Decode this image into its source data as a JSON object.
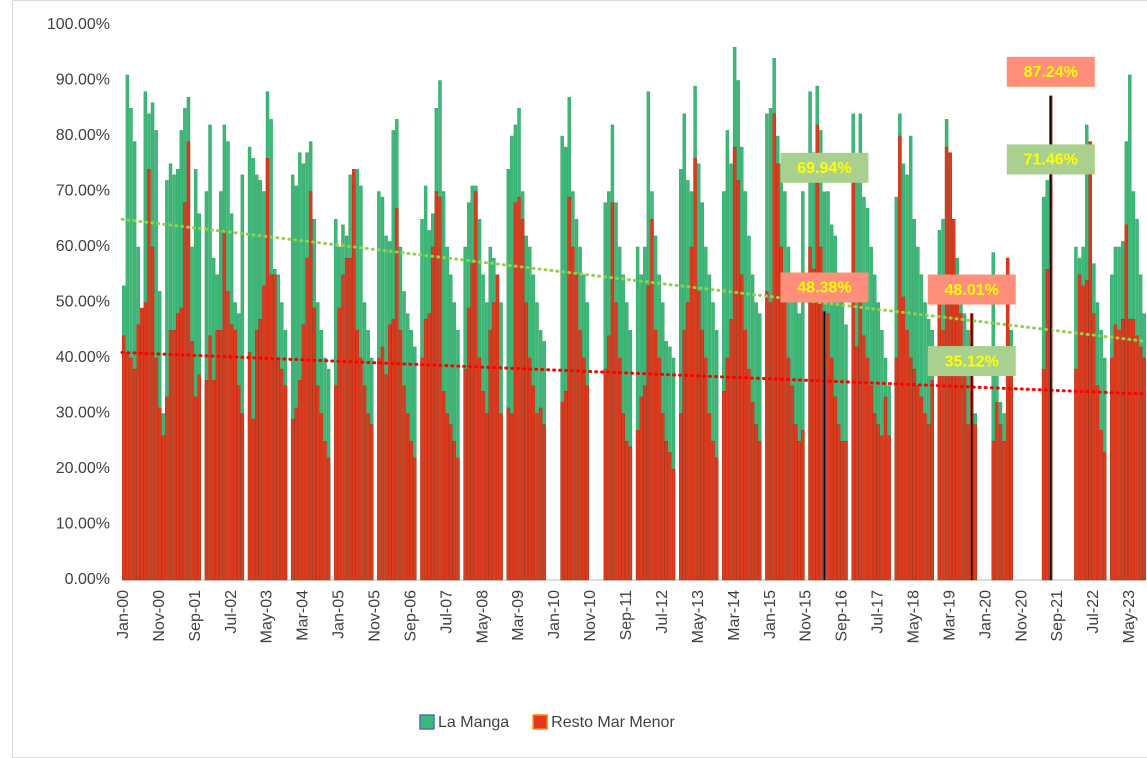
{
  "chart_data": {
    "type": "bar",
    "categories": [
      "Jan-00",
      null,
      null,
      null,
      null,
      null,
      null,
      null,
      null,
      null,
      "Nov-00",
      null,
      null,
      null,
      null,
      null,
      null,
      null,
      null,
      null,
      "Sep-01",
      null,
      null,
      null,
      null,
      null,
      null,
      null,
      null,
      null,
      "Jul-02",
      null,
      null,
      null,
      null,
      null,
      null,
      null,
      null,
      null,
      "May-03",
      null,
      null,
      null,
      null,
      null,
      null,
      null,
      null,
      null,
      "Mar-04",
      null,
      null,
      null,
      null,
      null,
      null,
      null,
      null,
      null,
      "Jan-05",
      null,
      null,
      null,
      null,
      null,
      null,
      null,
      null,
      null,
      "Nov-05",
      null,
      null,
      null,
      null,
      null,
      null,
      null,
      null,
      null,
      "Sep-06",
      null,
      null,
      null,
      null,
      null,
      null,
      null,
      null,
      null,
      "Jul-07",
      null,
      null,
      null,
      null,
      null,
      null,
      null,
      null,
      null,
      "May-08",
      null,
      null,
      null,
      null,
      null,
      null,
      null,
      null,
      null,
      "Mar-09",
      null,
      null,
      null,
      null,
      null,
      null,
      null,
      null,
      null,
      "Jan-10",
      null,
      null,
      null,
      null,
      null,
      null,
      null,
      null,
      null,
      "Nov-10",
      null,
      null,
      null,
      null,
      null,
      null,
      null,
      null,
      null,
      "Sep-11",
      null,
      null,
      null,
      null,
      null,
      null,
      null,
      null,
      null,
      "Jul-12",
      null,
      null,
      null,
      null,
      null,
      null,
      null,
      null,
      null,
      "May-13",
      null,
      null,
      null,
      null,
      null,
      null,
      null,
      null,
      null,
      "Mar-14",
      null,
      null,
      null,
      null,
      null,
      null,
      null,
      null,
      null,
      "Jan-15",
      null,
      null,
      null,
      null,
      null,
      null,
      null,
      null,
      null,
      "Nov-15",
      null,
      null,
      null,
      null,
      null,
      null,
      null,
      null,
      null,
      "Sep-16",
      null,
      null,
      null,
      null,
      null,
      null,
      null,
      null,
      null,
      "Jul-17",
      null,
      null,
      null,
      null,
      null,
      null,
      null,
      null,
      null,
      "May-18",
      null,
      null,
      null,
      null,
      null,
      null,
      null,
      null,
      null,
      "Mar-19",
      null,
      null,
      null,
      null,
      null,
      null,
      null,
      null,
      null,
      "Jan-20",
      null,
      null,
      null,
      null,
      null,
      null,
      null,
      null,
      null,
      "Nov-20",
      null,
      null,
      null,
      null,
      null,
      null,
      null,
      null,
      null,
      "Sep-21",
      null,
      null,
      null,
      null,
      null,
      null,
      null,
      null,
      null,
      "Jul-22",
      null,
      null,
      null,
      null,
      null,
      null,
      null,
      null,
      null,
      "May-23",
      null,
      null,
      null,
      null
    ],
    "series": [
      {
        "name": "La Manga",
        "color": "#3cb878",
        "stroke": "#2a9a5c",
        "label_color": "#a9d08e",
        "trendline": [
          65,
          43
        ],
        "trend_color": "#92d050",
        "values": [
          53,
          91,
          85,
          79,
          60,
          46,
          88,
          84,
          86,
          81,
          52,
          30,
          72,
          75,
          73,
          74,
          81,
          85,
          87,
          60,
          74,
          66,
          null,
          70,
          82,
          58,
          55,
          70,
          82,
          79,
          66,
          50,
          48,
          73,
          null,
          78,
          76,
          73,
          72,
          70,
          88,
          83,
          56,
          55,
          50,
          45,
          null,
          73,
          71,
          77,
          75,
          77,
          79,
          65,
          50,
          45,
          40,
          38,
          null,
          65,
          60,
          64,
          62,
          73,
          72,
          74,
          71,
          50,
          45,
          40,
          null,
          70,
          69,
          62,
          61,
          81,
          83,
          60,
          52,
          48,
          45,
          42,
          null,
          65,
          71,
          63,
          66,
          85,
          90,
          70,
          60,
          55,
          50,
          45,
          null,
          60,
          68,
          71,
          71,
          65,
          55,
          50,
          60,
          58,
          55,
          50,
          null,
          74,
          80,
          82,
          85,
          70,
          62,
          60,
          55,
          50,
          45,
          43,
          null,
          null,
          null,
          null,
          80,
          78,
          87,
          70,
          65,
          60,
          55,
          50,
          null,
          null,
          null,
          null,
          68,
          70,
          82,
          68,
          60,
          55,
          50,
          45,
          null,
          60,
          55,
          60,
          88,
          70,
          62,
          55,
          50,
          43,
          42,
          40,
          null,
          74,
          84,
          72,
          70,
          89,
          75,
          68,
          60,
          55,
          50,
          45,
          null,
          70,
          81,
          75,
          96,
          90,
          78,
          70,
          62,
          55,
          50,
          48,
          null,
          84,
          85,
          94,
          80,
          75,
          70,
          60,
          55,
          50,
          48,
          70,
          null,
          88,
          77,
          89,
          81,
          69.94,
          70,
          64,
          62,
          55,
          50,
          46,
          null,
          84,
          74,
          84,
          69,
          67,
          60,
          55,
          50,
          45,
          40,
          35,
          null,
          69,
          84,
          75,
          73,
          80,
          65,
          60,
          55,
          50,
          47,
          45,
          null,
          63,
          65,
          83,
          74,
          63,
          58,
          55,
          48,
          45,
          35.12,
          30,
          null,
          null,
          null,
          null,
          59,
          40,
          32,
          30,
          58,
          45,
          null,
          null,
          null,
          null,
          null,
          null,
          null,
          null,
          69,
          72,
          71.46,
          null,
          null,
          null,
          null,
          null,
          null,
          60,
          58,
          60,
          82,
          78,
          57,
          50,
          45,
          40,
          null,
          55,
          60,
          60,
          61,
          79,
          91,
          70,
          65,
          55,
          48
        ]
      },
      {
        "name": "Resto Mar Menor",
        "color": "#e03a1e",
        "stroke": "#b02a12",
        "label_color": "#ff8f7a",
        "trendline": [
          41,
          33.5
        ],
        "trend_color": "#ff0000",
        "values": [
          44,
          41,
          40,
          38,
          46,
          49,
          50,
          74,
          60,
          40,
          31,
          26,
          33,
          45,
          45,
          48,
          49,
          68,
          79,
          43,
          33,
          37,
          null,
          36,
          44,
          36,
          45,
          45,
          63,
          52,
          46,
          45,
          35,
          30,
          null,
          41,
          29,
          45,
          47,
          53,
          76,
          55,
          55,
          40,
          38,
          35,
          null,
          29,
          31,
          36,
          46,
          58,
          70,
          49,
          35,
          30,
          25,
          22,
          null,
          35,
          49,
          55,
          58,
          58,
          74,
          45,
          40,
          35,
          30,
          28,
          null,
          40,
          42,
          37,
          46,
          47,
          67,
          45,
          35,
          30,
          25,
          22,
          null,
          40,
          47,
          48,
          60,
          70,
          69,
          34,
          30,
          28,
          25,
          22,
          null,
          38,
          49,
          57,
          70,
          40,
          34,
          30,
          45,
          50,
          55,
          30,
          null,
          31,
          30,
          68,
          69,
          65,
          50,
          40,
          35,
          30,
          31,
          28,
          null,
          null,
          null,
          null,
          32,
          34,
          69,
          60,
          55,
          45,
          40,
          35,
          null,
          null,
          null,
          null,
          38,
          44,
          68,
          50,
          40,
          30,
          25,
          24,
          null,
          27,
          33,
          35,
          53,
          65,
          45,
          40,
          30,
          25,
          23,
          20,
          null,
          30,
          45,
          50,
          60,
          76,
          52,
          45,
          40,
          30,
          25,
          22,
          null,
          34,
          40,
          47,
          78,
          72,
          55,
          45,
          38,
          32,
          28,
          25,
          null,
          52,
          50,
          84,
          75,
          60,
          50,
          40,
          35,
          28,
          25,
          27,
          null,
          60,
          56,
          82,
          60,
          48.38,
          48,
          40,
          33,
          28,
          25,
          25,
          null,
          72,
          42,
          55,
          44,
          40,
          35,
          30,
          28,
          26,
          33,
          26,
          null,
          40,
          80,
          51,
          45,
          40,
          38,
          35,
          33,
          30,
          28,
          36,
          null,
          50,
          45,
          78,
          77,
          65,
          55,
          48,
          40,
          28,
          48.01,
          28,
          null,
          null,
          null,
          null,
          25,
          32,
          28,
          25,
          58,
          37,
          null,
          null,
          null,
          null,
          null,
          null,
          null,
          null,
          38,
          56,
          87.24,
          null,
          null,
          null,
          null,
          null,
          null,
          38,
          55,
          53,
          54,
          79,
          48,
          35,
          27,
          23,
          null,
          40,
          46,
          45,
          47,
          64,
          47,
          47,
          44,
          42,
          40
        ]
      }
    ],
    "annotations": [
      {
        "series": 0,
        "index": 195,
        "label": "69.94%"
      },
      {
        "series": 1,
        "index": 195,
        "label": "48.38%"
      },
      {
        "series": 1,
        "index": 236,
        "label": "48.01%"
      },
      {
        "series": 0,
        "index": 236,
        "label": "35.12%"
      },
      {
        "series": 1,
        "index": 258,
        "label": "87.24%"
      },
      {
        "series": 0,
        "index": 258,
        "label": "71.46%"
      }
    ],
    "ylim": [
      0,
      100
    ],
    "yticks": [
      {
        "value": 0,
        "label": "0.00%"
      },
      {
        "value": 10,
        "label": "10.00%"
      },
      {
        "value": 20,
        "label": "20.00%"
      },
      {
        "value": 30,
        "label": "30.00%"
      },
      {
        "value": 40,
        "label": "40.00%"
      },
      {
        "value": 50,
        "label": "50.00%"
      },
      {
        "value": 60,
        "label": "60.00%"
      },
      {
        "value": 70,
        "label": "70.00%"
      },
      {
        "value": 80,
        "label": "80.00%"
      },
      {
        "value": 90,
        "label": "90.00%"
      },
      {
        "value": 100,
        "label": "100.00%"
      }
    ],
    "grid": false,
    "legend": "bottom"
  }
}
